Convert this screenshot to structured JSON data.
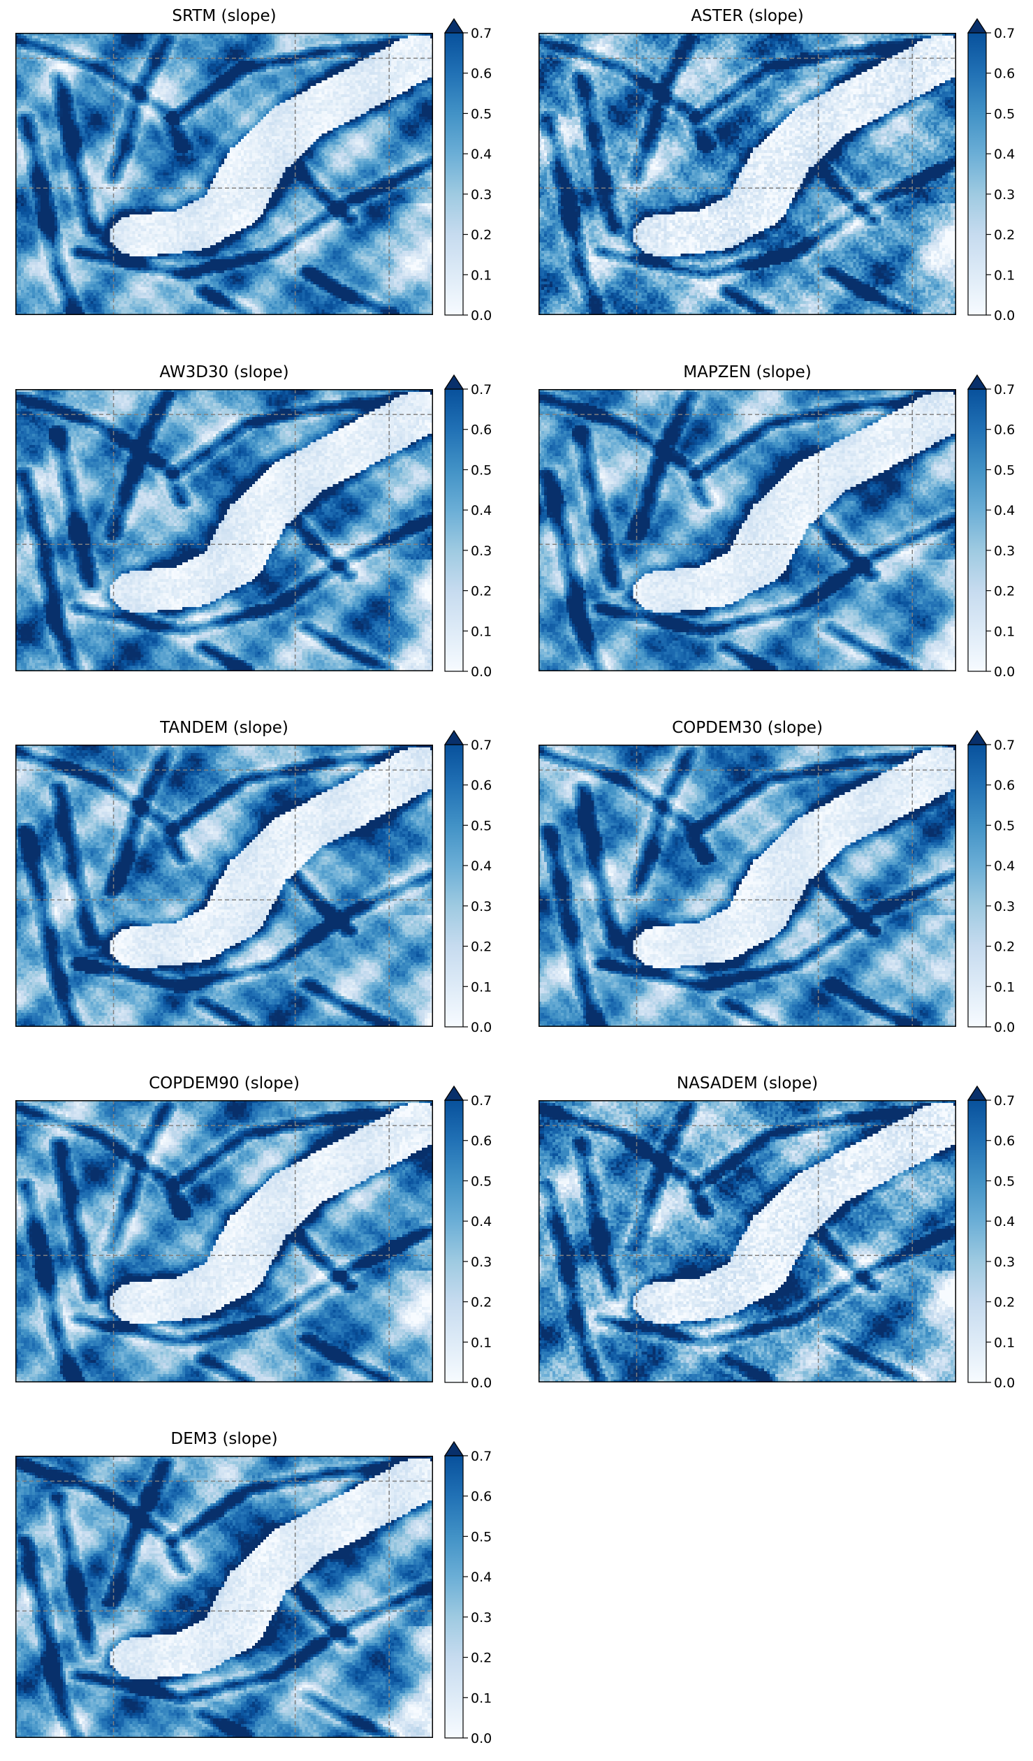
{
  "figure": {
    "colormap": "Blues",
    "grid": true,
    "grid_style": "dashed",
    "grid_color": "#808080",
    "colorbar_extend": "max"
  },
  "colorbar": {
    "range": [
      0,
      0.7
    ],
    "ticks": [
      "0.0",
      "0.1",
      "0.2",
      "0.3",
      "0.4",
      "0.5",
      "0.6",
      "0.7"
    ],
    "colors": [
      "#f7fbff",
      "#deebf7",
      "#c6dbef",
      "#9ecae1",
      "#6baed6",
      "#4292c6",
      "#2171b5",
      "#08519c",
      "#08306b"
    ]
  },
  "chart_data": [
    {
      "type": "heatmap",
      "title": "SRTM (slope)",
      "variant": 0
    },
    {
      "type": "heatmap",
      "title": "ASTER (slope)",
      "variant": 1
    },
    {
      "type": "heatmap",
      "title": "AW3D30 (slope)",
      "variant": 2
    },
    {
      "type": "heatmap",
      "title": "MAPZEN (slope)",
      "variant": 3
    },
    {
      "type": "heatmap",
      "title": "TANDEM (slope)",
      "variant": 4
    },
    {
      "type": "heatmap",
      "title": "COPDEM30 (slope)",
      "variant": 5
    },
    {
      "type": "heatmap",
      "title": "COPDEM90 (slope)",
      "variant": 6
    },
    {
      "type": "heatmap",
      "title": "NASADEM (slope)",
      "variant": 7
    },
    {
      "type": "heatmap",
      "title": "DEM3 (slope)",
      "variant": 8
    }
  ]
}
